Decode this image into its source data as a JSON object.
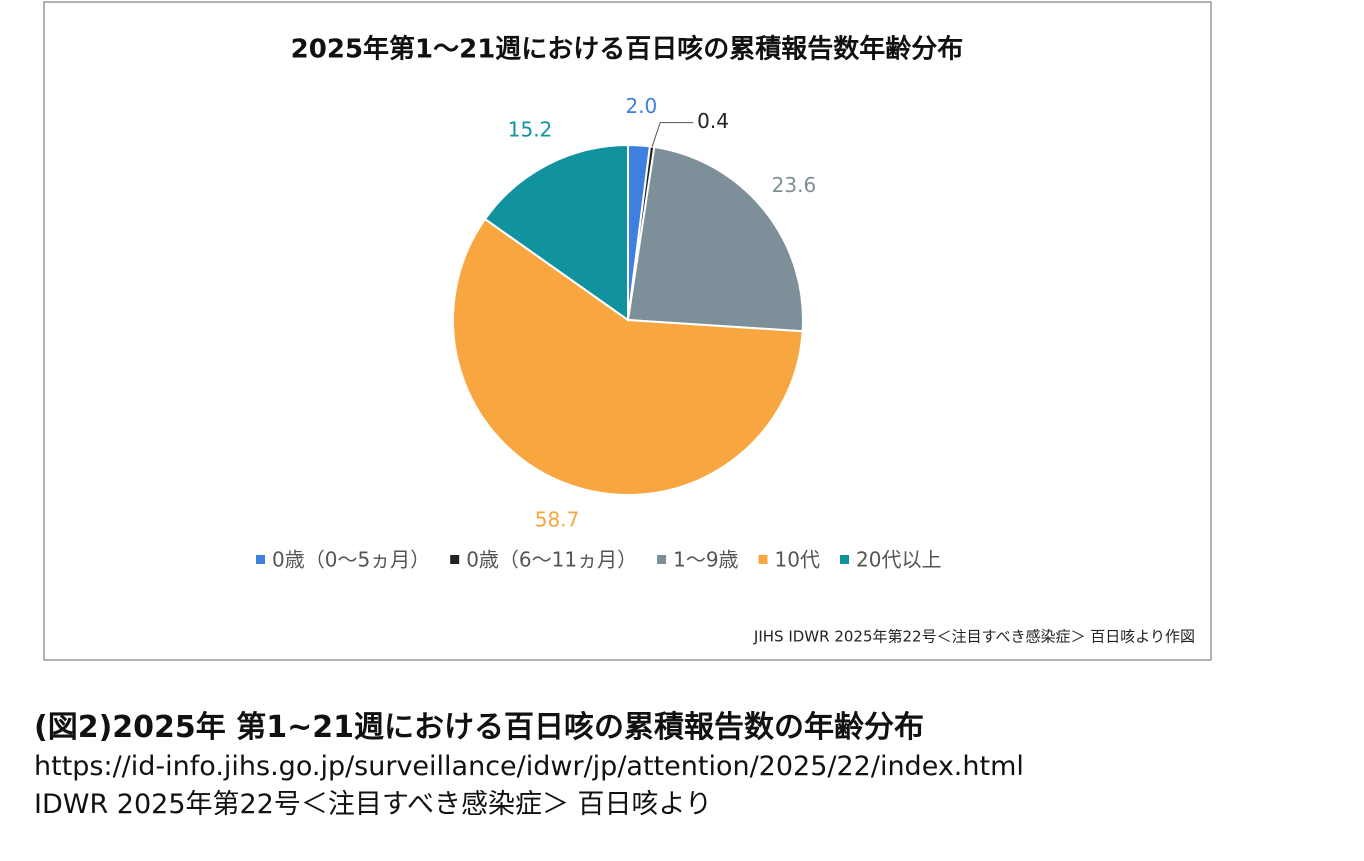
{
  "chart_data": {
    "type": "pie",
    "title": "2025年第1〜21週における百日咳の累積報告数年齢分布",
    "categories": [
      "0歳（0〜5ヵ月）",
      "0歳（6〜11ヵ月）",
      "1〜9歳",
      "10代",
      "20代以上"
    ],
    "values": [
      2.0,
      0.4,
      23.6,
      58.7,
      15.2
    ],
    "value_labels": [
      "2.0",
      "0.4",
      "23.6",
      "58.7",
      "15.2"
    ],
    "colors": [
      "#3f7fe0",
      "#222222",
      "#7d8f99",
      "#f8a740",
      "#10939f"
    ],
    "legend": "bottom",
    "note": "JIHS IDWR 2025年第22号＜注目すべき感染症＞ 百日咳より作図"
  },
  "caption": {
    "title": "(図2)2025年 第1~21週における百日咳の累積報告数の年齢分布",
    "url": "https://id-info.jihs.go.jp/surveillance/idwr/jp/attention/2025/22/index.html",
    "source": "IDWR 2025年第22号＜注目すべき感染症＞ 百日咳より"
  }
}
